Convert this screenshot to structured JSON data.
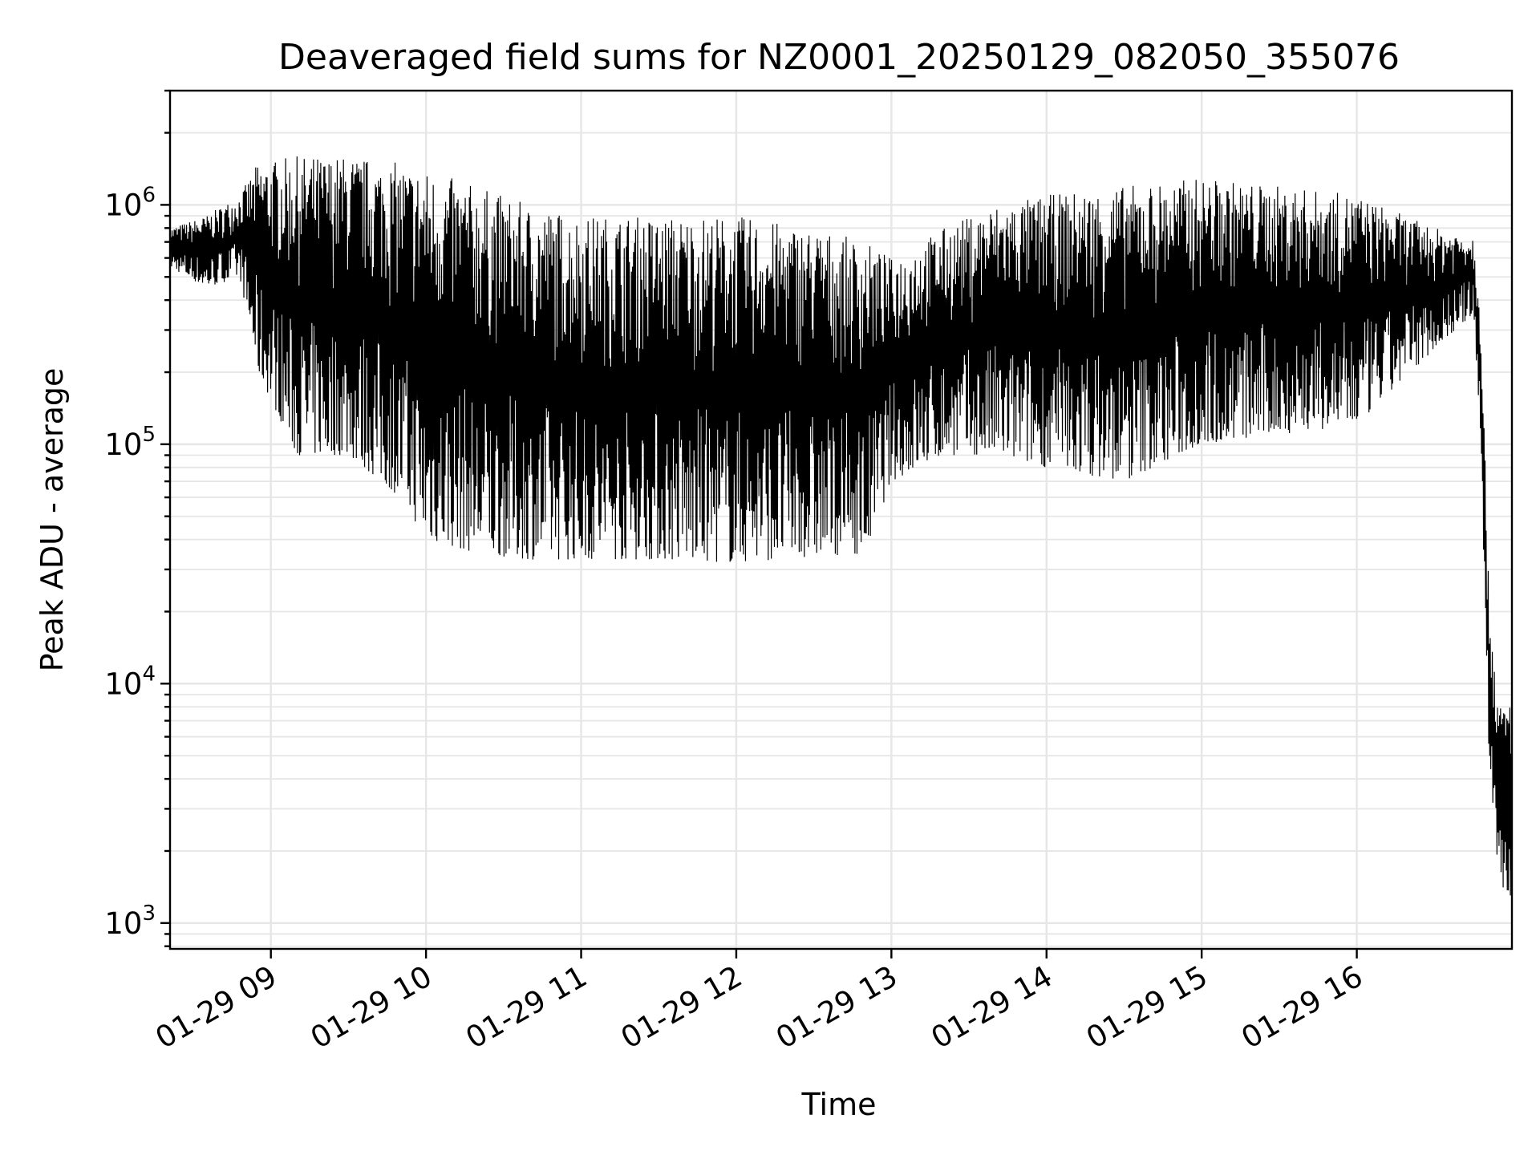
{
  "chart_data": {
    "type": "line",
    "title": "Deaveraged field sums for NZ0001_20250129_082050_355076",
    "xlabel": "Time",
    "ylabel": "Peak ADU - average",
    "yscale": "log",
    "ylim": [
      780,
      3000000
    ],
    "xlim": [
      "2025-01-29 08:21",
      "2025-01-29 17:00"
    ],
    "grid": true,
    "y_ticks": [
      {
        "base": "10",
        "exp": "3",
        "value": 1000
      },
      {
        "base": "10",
        "exp": "4",
        "value": 10000
      },
      {
        "base": "10",
        "exp": "5",
        "value": 100000
      },
      {
        "base": "10",
        "exp": "6",
        "value": 1000000
      }
    ],
    "x_ticks": [
      {
        "label": "01-29 09",
        "time": "2025-01-29 09:00"
      },
      {
        "label": "01-29 10",
        "time": "2025-01-29 10:00"
      },
      {
        "label": "01-29 11",
        "time": "2025-01-29 11:00"
      },
      {
        "label": "01-29 12",
        "time": "2025-01-29 12:00"
      },
      {
        "label": "01-29 13",
        "time": "2025-01-29 13:00"
      },
      {
        "label": "01-29 14",
        "time": "2025-01-29 14:00"
      },
      {
        "label": "01-29 15",
        "time": "2025-01-29 15:00"
      },
      {
        "label": "01-29 16",
        "time": "2025-01-29 16:00"
      }
    ],
    "series": [
      {
        "color": "#000000",
        "envelope": [
          {
            "time": "2025-01-29 08:21",
            "low": 550000,
            "high": 800000
          },
          {
            "time": "2025-01-29 08:35",
            "low": 450000,
            "high": 900000
          },
          {
            "time": "2025-01-29 08:48",
            "low": 500000,
            "high": 1100000
          },
          {
            "time": "2025-01-29 08:55",
            "low": 200000,
            "high": 1500000
          },
          {
            "time": "2025-01-29 09:10",
            "low": 90000,
            "high": 1600000
          },
          {
            "time": "2025-01-29 09:30",
            "low": 90000,
            "high": 1600000
          },
          {
            "time": "2025-01-29 09:50",
            "low": 60000,
            "high": 1500000
          },
          {
            "time": "2025-01-29 10:00",
            "low": 40000,
            "high": 1400000
          },
          {
            "time": "2025-01-29 10:20",
            "low": 35000,
            "high": 1200000
          },
          {
            "time": "2025-01-29 10:40",
            "low": 33000,
            "high": 1000000
          },
          {
            "time": "2025-01-29 11:00",
            "low": 33000,
            "high": 900000
          },
          {
            "time": "2025-01-29 11:30",
            "low": 33000,
            "high": 900000
          },
          {
            "time": "2025-01-29 12:00",
            "low": 32000,
            "high": 900000
          },
          {
            "time": "2025-01-29 12:30",
            "low": 34000,
            "high": 800000
          },
          {
            "time": "2025-01-29 12:50",
            "low": 35000,
            "high": 700000
          },
          {
            "time": "2025-01-29 13:00",
            "low": 70000,
            "high": 600000
          },
          {
            "time": "2025-01-29 13:20",
            "low": 90000,
            "high": 800000
          },
          {
            "time": "2025-01-29 13:40",
            "low": 90000,
            "high": 1000000
          },
          {
            "time": "2025-01-29 14:00",
            "low": 80000,
            "high": 1100000
          },
          {
            "time": "2025-01-29 14:30",
            "low": 70000,
            "high": 1200000
          },
          {
            "time": "2025-01-29 15:00",
            "low": 100000,
            "high": 1300000
          },
          {
            "time": "2025-01-29 15:30",
            "low": 110000,
            "high": 1200000
          },
          {
            "time": "2025-01-29 16:00",
            "low": 120000,
            "high": 1100000
          },
          {
            "time": "2025-01-29 16:30",
            "low": 250000,
            "high": 800000
          },
          {
            "time": "2025-01-29 16:45",
            "low": 350000,
            "high": 750000
          },
          {
            "time": "2025-01-29 16:48",
            "low": 100000,
            "high": 400000
          },
          {
            "time": "2025-01-29 16:51",
            "low": 5000,
            "high": 25000
          },
          {
            "time": "2025-01-29 16:55",
            "low": 1500,
            "high": 8000
          },
          {
            "time": "2025-01-29 17:00",
            "low": 1200,
            "high": 9000
          }
        ]
      }
    ]
  }
}
